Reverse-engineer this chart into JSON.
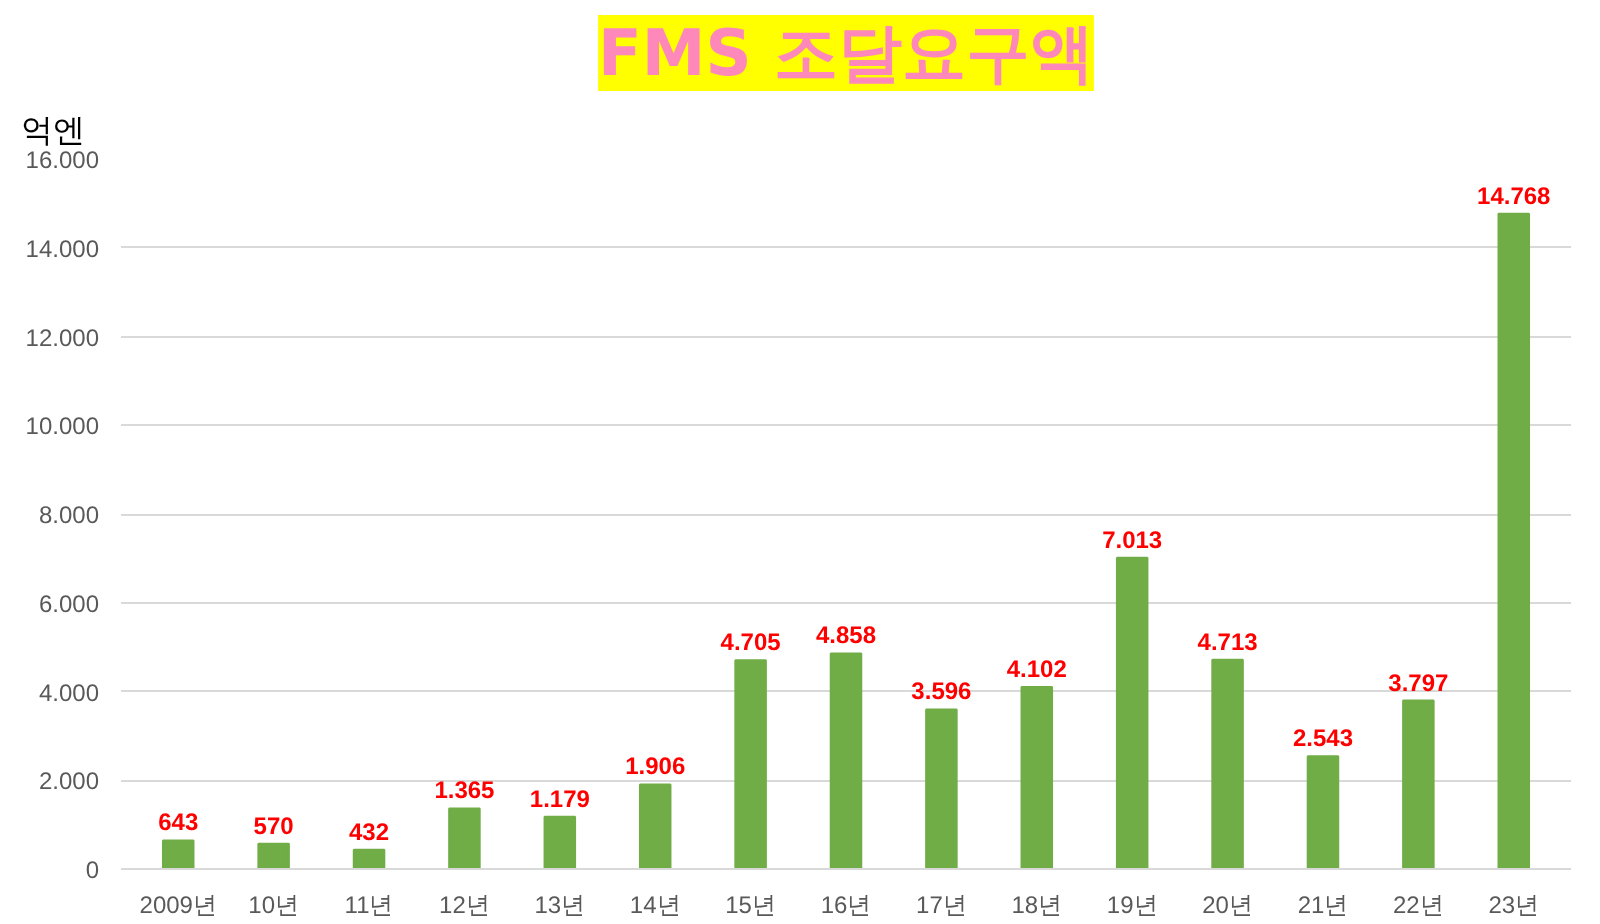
{
  "chart_data": {
    "type": "bar",
    "title": "FMS 조달요구액",
    "ylabel": "억엔",
    "categories": [
      "2009년",
      "10년",
      "11년",
      "12년",
      "13년",
      "14년",
      "15년",
      "16년",
      "17년",
      "18년",
      "19년",
      "20년",
      "21년",
      "22년",
      "23년"
    ],
    "values": [
      643,
      570,
      432,
      1365,
      1179,
      1906,
      4705,
      4858,
      3596,
      4102,
      7013,
      4713,
      2543,
      3797,
      14768
    ],
    "value_labels": [
      "643",
      "570",
      "432",
      "1.365",
      "1.179",
      "1.906",
      "4.705",
      "4.858",
      "3.596",
      "4.102",
      "7.013",
      "4.713",
      "2.543",
      "3.797",
      "14.768"
    ],
    "color": "#70ad47",
    "ylim": [
      0,
      16000
    ],
    "yticks": [
      0,
      {
        "value": 2000,
        "label": "2.000"
      },
      {
        "value": 4000,
        "label": "4.000"
      },
      {
        "value": 6000,
        "label": "6.000"
      },
      {
        "value": 8000,
        "label": "8.000"
      },
      {
        "value": 10000,
        "label": "10.000"
      },
      {
        "value": 12000,
        "label": "12.000"
      },
      {
        "value": 14000,
        "label": "14.000"
      },
      {
        "value": 16000,
        "label": "16.000"
      }
    ],
    "grid": "y"
  }
}
